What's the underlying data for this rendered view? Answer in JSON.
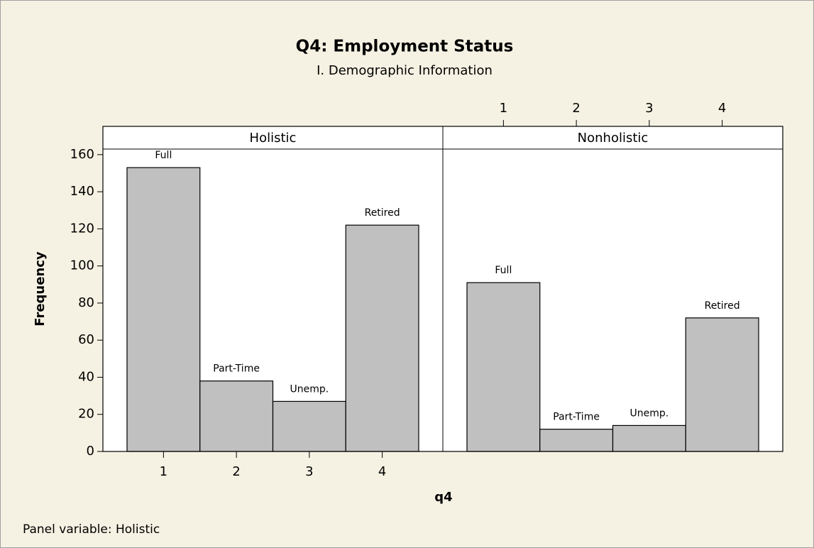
{
  "chart_data": {
    "type": "bar",
    "title": "Q4: Employment Status",
    "subtitle": "I. Demographic Information",
    "xlabel": "q4",
    "ylabel": "Frequency",
    "footnote": "Panel variable: Holistic",
    "categories": [
      1,
      2,
      3,
      4
    ],
    "bar_labels": [
      "Full",
      "Part-Time",
      "Unemp.",
      "Retired"
    ],
    "panels": [
      {
        "name": "Holistic",
        "values": [
          153,
          38,
          27,
          122
        ]
      },
      {
        "name": "Nonholistic",
        "values": [
          91,
          12,
          14,
          72
        ]
      }
    ],
    "color": "#c0c0c0",
    "ylim": [
      0,
      163
    ],
    "yticks": [
      0,
      20,
      40,
      60,
      80,
      100,
      120,
      140,
      160
    ]
  }
}
